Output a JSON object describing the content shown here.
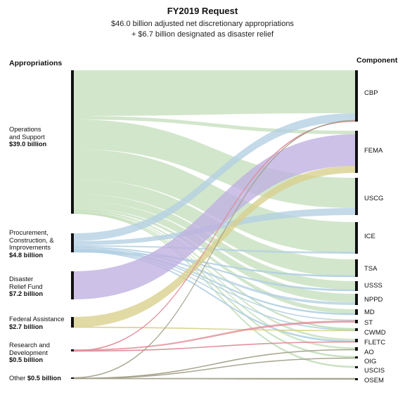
{
  "title": "FY2019 Request",
  "subtitle_line1": "$46.0 billion adjusted net discretionary appropriations",
  "subtitle_line2": "+ $6.7 billion designated as disaster relief",
  "left_header": "Appropriations",
  "right_header": "Component",
  "appropriations": [
    {
      "name": "Operations\nand Support",
      "amount": "$39.0 billion",
      "color": "#c5dfbc"
    },
    {
      "name": "Procurement,\nConstruction, &\nImprovements",
      "amount": "$4.8 billion",
      "color": "#b3d0e3"
    },
    {
      "name": "Disaster\nRelief Fund",
      "amount": "$7.2 billion",
      "color": "#bfb0e0"
    },
    {
      "name": "Federal Assistance",
      "amount": "$2.7 billion",
      "color": "#d8d08c"
    },
    {
      "name": "Research and\nDevelopment",
      "amount": "$0.5 billion",
      "color": "#e08a96"
    },
    {
      "name": "Other",
      "amount": "$0.5 billion",
      "color": "#a3a08a"
    }
  ],
  "components": [
    "CBP",
    "FEMA",
    "USCG",
    "ICE",
    "TSA",
    "USSS",
    "NPPD",
    "MD",
    "ST",
    "CWMD",
    "FLETC",
    "AO",
    "OIG",
    "USCIS",
    "OSEM"
  ]
}
